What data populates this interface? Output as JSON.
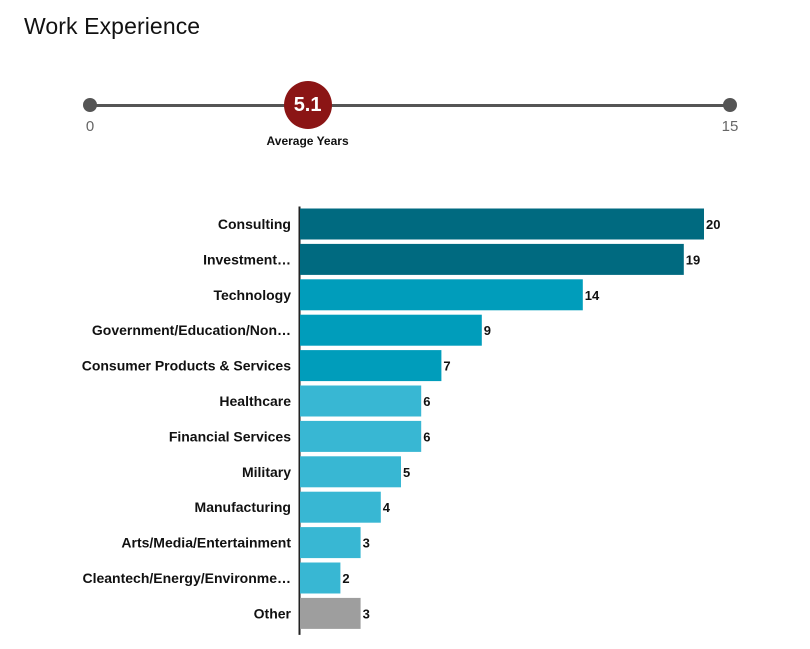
{
  "title": "Work Experience",
  "slider": {
    "min_label": "0",
    "max_label": "15",
    "min": 0,
    "max": 15,
    "value": 5.1,
    "value_label": "5.1",
    "caption": "Average Years"
  },
  "colors": {
    "marker": "#8b1515",
    "dark_teal": "#006a80",
    "mid_teal": "#009dbb",
    "light_teal": "#38b7d3",
    "gray": "#9e9e9e",
    "track": "#555555"
  },
  "chart_data": {
    "type": "bar",
    "orientation": "horizontal",
    "categories": [
      "Consulting",
      "Investment…",
      "Technology",
      "Government/Education/Non…",
      "Consumer Products & Services",
      "Healthcare",
      "Financial Services",
      "Military",
      "Manufacturing",
      "Arts/Media/Entertainment",
      "Cleantech/Energy/Environme…",
      "Other"
    ],
    "values": [
      20,
      19,
      14,
      9,
      7,
      6,
      6,
      5,
      4,
      3,
      2,
      3
    ],
    "value_labels": [
      "20",
      "19",
      "14",
      "9",
      "7",
      "6",
      "6",
      "5",
      "4",
      "3",
      "2",
      "3"
    ],
    "bar_colors": [
      "#006a80",
      "#006a80",
      "#009dbb",
      "#009dbb",
      "#009dbb",
      "#38b7d3",
      "#38b7d3",
      "#38b7d3",
      "#38b7d3",
      "#38b7d3",
      "#38b7d3",
      "#9e9e9e"
    ],
    "xlim": [
      0,
      20
    ]
  }
}
